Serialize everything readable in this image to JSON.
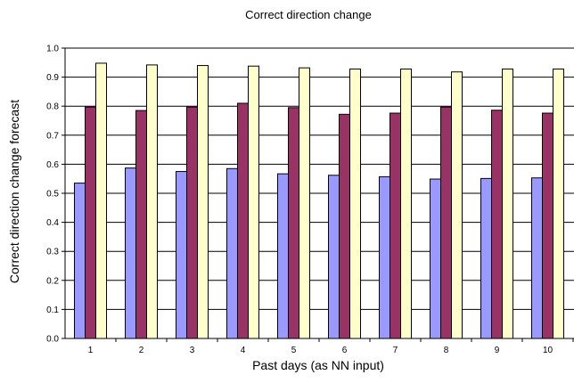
{
  "chart_data": {
    "type": "bar",
    "title": "Correct direction change",
    "xlabel": "Past days (as NN input)",
    "ylabel": "Correct direction change forecast",
    "categories": [
      "1",
      "2",
      "3",
      "4",
      "5",
      "6",
      "7",
      "8",
      "9",
      "10"
    ],
    "series": [
      {
        "values": [
          0.535,
          0.587,
          0.575,
          0.585,
          0.567,
          0.562,
          0.557,
          0.549,
          0.551,
          0.553
        ],
        "color": "#9999ff"
      },
      {
        "values": [
          0.797,
          0.785,
          0.797,
          0.81,
          0.795,
          0.772,
          0.776,
          0.797,
          0.786,
          0.776
        ],
        "color": "#993366"
      },
      {
        "values": [
          0.948,
          0.942,
          0.94,
          0.938,
          0.932,
          0.928,
          0.928,
          0.918,
          0.928,
          0.928
        ],
        "color": "#ffffcc"
      }
    ],
    "ylim": [
      0,
      1.0
    ],
    "yticks": [
      "0.0",
      "0.1",
      "0.2",
      "0.3",
      "0.4",
      "0.5",
      "0.6",
      "0.7",
      "0.8",
      "0.9",
      "1.0"
    ],
    "grid": true,
    "legend": "none"
  }
}
